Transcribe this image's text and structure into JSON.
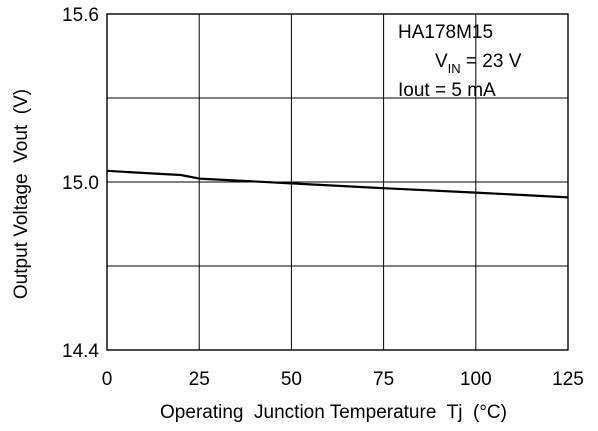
{
  "chart_data": {
    "type": "line",
    "xlabel": "Operating  Junction Temperature  Tj  (°C)",
    "ylabel": "Output Voltage  Vout  (V)",
    "xlim": [
      0,
      125
    ],
    "ylim": [
      14.4,
      15.6
    ],
    "x_ticks": [
      "0",
      "25",
      "50",
      "75",
      "100",
      "125"
    ],
    "y_ticks": [
      "14.4",
      "15.0",
      "15.6"
    ],
    "x_grid": [
      25,
      50,
      75,
      100
    ],
    "y_grid": [
      14.7,
      15.0,
      15.3
    ],
    "grid": true,
    "annotation": {
      "line1": "HA178M15",
      "line2_main": "V",
      "line2_sub": "IN",
      "line2_rest": " = 23 V",
      "line3": "Iout = 5 mA"
    },
    "series": [
      {
        "x": [
          0,
          10,
          20,
          25,
          50,
          75,
          100,
          125
        ],
        "y": [
          15.04,
          15.032,
          15.025,
          15.012,
          14.995,
          14.978,
          14.962,
          14.945
        ]
      }
    ],
    "line_color": "#000000"
  }
}
